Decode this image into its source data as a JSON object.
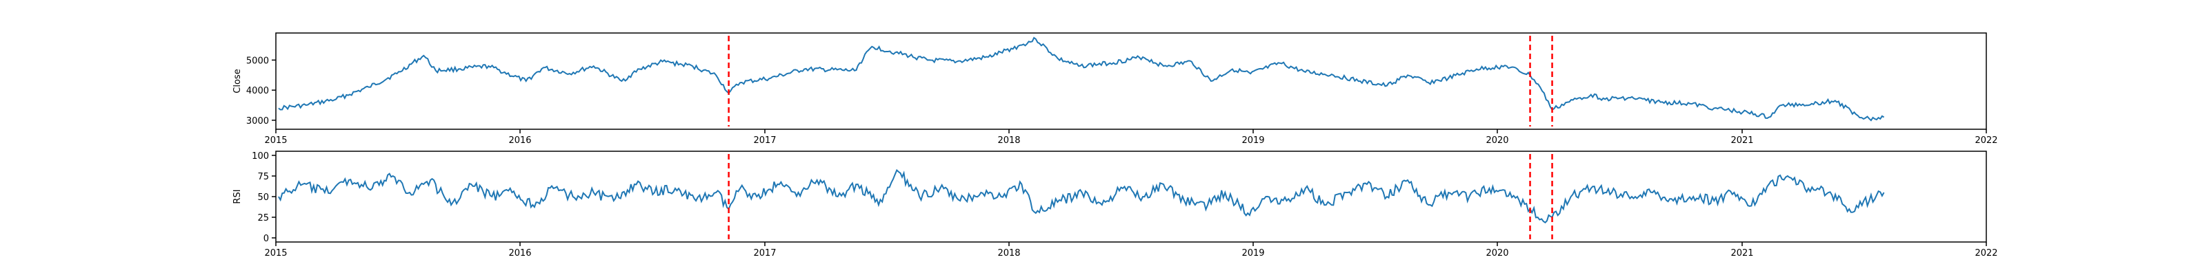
{
  "chart_data": [
    {
      "type": "line",
      "ylabel": "Close",
      "xlim": [
        "2015-01-01",
        "2022-01-01"
      ],
      "ylim": [
        2700,
        5900
      ],
      "grid": false,
      "x_ticks": [
        "2015",
        "2016",
        "2017",
        "2018",
        "2019",
        "2020",
        "2021",
        "2022"
      ],
      "y_ticks": [
        3000,
        4000,
        5000
      ],
      "series": [
        {
          "color": "#1f77b4",
          "x": [
            "2015-01-05",
            "2015-02-15",
            "2015-04-01",
            "2015-05-20",
            "2015-07-01",
            "2015-08-10",
            "2015-08-28",
            "2015-10-01",
            "2015-11-15",
            "2016-01-10",
            "2016-02-05",
            "2016-03-15",
            "2016-04-20",
            "2016-06-01",
            "2016-06-28",
            "2016-08-01",
            "2016-09-15",
            "2016-10-20",
            "2016-11-08",
            "2016-11-25",
            "2017-01-10",
            "2017-03-01",
            "2017-05-15",
            "2017-06-10",
            "2017-07-15",
            "2017-09-01",
            "2017-10-15",
            "2017-12-01",
            "2018-01-20",
            "2018-02-10",
            "2018-03-15",
            "2018-04-15",
            "2018-06-01",
            "2018-07-20",
            "2018-08-20",
            "2018-10-01",
            "2018-10-30",
            "2018-12-01",
            "2018-12-28",
            "2019-02-10",
            "2019-03-20",
            "2019-05-01",
            "2019-06-10",
            "2019-07-20",
            "2019-08-20",
            "2019-09-20",
            "2019-10-20",
            "2019-12-01",
            "2020-01-15",
            "2020-02-19",
            "2020-03-05",
            "2020-03-23",
            "2020-04-15",
            "2020-05-20",
            "2020-06-10",
            "2020-07-15",
            "2020-09-01",
            "2020-10-15",
            "2020-11-20",
            "2021-01-10",
            "2021-02-10",
            "2021-03-01",
            "2021-04-15",
            "2021-05-20",
            "2021-06-20",
            "2021-07-10",
            "2021-08-01"
          ],
          "values": [
            3400,
            3500,
            3700,
            4100,
            4550,
            5150,
            4650,
            4700,
            4800,
            4300,
            4750,
            4550,
            4800,
            4300,
            4700,
            4950,
            4800,
            4500,
            3900,
            4250,
            4400,
            4700,
            4650,
            5450,
            5250,
            5000,
            4950,
            5100,
            5500,
            5700,
            5050,
            4800,
            4900,
            5100,
            4800,
            4950,
            4300,
            4700,
            4550,
            4900,
            4600,
            4500,
            4300,
            4150,
            4500,
            4250,
            4400,
            4700,
            4800,
            4500,
            4100,
            3350,
            3600,
            3850,
            3700,
            3750,
            3600,
            3550,
            3400,
            3250,
            3100,
            3500,
            3550,
            3650,
            3200,
            3050,
            3100
          ]
        }
      ],
      "vlines": [
        {
          "x": "2016-11-08",
          "color": "#ff0000",
          "style": "dashed"
        },
        {
          "x": "2020-02-19",
          "color": "#ff0000",
          "style": "dashed"
        },
        {
          "x": "2020-03-23",
          "color": "#ff0000",
          "style": "dashed"
        }
      ]
    },
    {
      "type": "line",
      "ylabel": "RSI",
      "xlim": [
        "2015-01-01",
        "2022-01-01"
      ],
      "ylim": [
        -5,
        105
      ],
      "grid": false,
      "x_ticks": [
        "2015",
        "2016",
        "2017",
        "2018",
        "2019",
        "2020",
        "2021",
        "2022"
      ],
      "y_ticks": [
        0,
        25,
        50,
        75,
        100
      ],
      "series": [
        {
          "color": "#1f77b4",
          "x": [
            "2015-01-05",
            "2015-02-10",
            "2015-03-15",
            "2015-04-20",
            "2015-05-25",
            "2015-06-25",
            "2015-07-20",
            "2015-08-20",
            "2015-09-20",
            "2015-10-20",
            "2015-11-20",
            "2015-12-20",
            "2016-01-20",
            "2016-02-20",
            "2016-03-20",
            "2016-04-20",
            "2016-05-20",
            "2016-06-20",
            "2016-07-20",
            "2016-08-20",
            "2016-09-20",
            "2016-10-20",
            "2016-11-08",
            "2016-11-25",
            "2016-12-20",
            "2017-01-20",
            "2017-02-20",
            "2017-03-20",
            "2017-04-20",
            "2017-05-20",
            "2017-06-20",
            "2017-07-20",
            "2017-08-20",
            "2017-09-20",
            "2017-10-20",
            "2017-11-20",
            "2017-12-20",
            "2018-01-20",
            "2018-02-10",
            "2018-03-20",
            "2018-04-20",
            "2018-05-20",
            "2018-06-20",
            "2018-07-20",
            "2018-08-20",
            "2018-09-20",
            "2018-10-25",
            "2018-11-20",
            "2018-12-24",
            "2019-01-20",
            "2019-02-20",
            "2019-03-20",
            "2019-04-20",
            "2019-05-20",
            "2019-06-20",
            "2019-07-20",
            "2019-08-20",
            "2019-09-20",
            "2019-10-20",
            "2019-11-20",
            "2019-12-20",
            "2020-01-20",
            "2020-02-19",
            "2020-03-10",
            "2020-03-23",
            "2020-04-20",
            "2020-05-20",
            "2020-06-20",
            "2020-07-20",
            "2020-08-20",
            "2020-09-20",
            "2020-10-20",
            "2020-11-20",
            "2020-12-20",
            "2021-01-20",
            "2021-02-10",
            "2021-03-10",
            "2021-04-10",
            "2021-05-10",
            "2021-06-10",
            "2021-07-10",
            "2021-08-01"
          ],
          "values": [
            50,
            65,
            55,
            70,
            60,
            75,
            55,
            70,
            40,
            65,
            50,
            55,
            40,
            60,
            50,
            55,
            45,
            65,
            55,
            60,
            45,
            55,
            35,
            60,
            50,
            65,
            55,
            70,
            50,
            65,
            40,
            80,
            50,
            60,
            45,
            55,
            50,
            65,
            30,
            45,
            55,
            40,
            60,
            50,
            65,
            45,
            40,
            55,
            30,
            50,
            45,
            60,
            40,
            55,
            65,
            50,
            70,
            40,
            55,
            50,
            60,
            55,
            35,
            20,
            25,
            50,
            60,
            55,
            50,
            55,
            45,
            50,
            45,
            55,
            40,
            65,
            75,
            60,
            55,
            35,
            45,
            55
          ]
        }
      ],
      "vlines": [
        {
          "x": "2016-11-08",
          "color": "#ff0000",
          "style": "dashed"
        },
        {
          "x": "2020-02-19",
          "color": "#ff0000",
          "style": "dashed"
        },
        {
          "x": "2020-03-23",
          "color": "#ff0000",
          "style": "dashed"
        }
      ]
    }
  ]
}
